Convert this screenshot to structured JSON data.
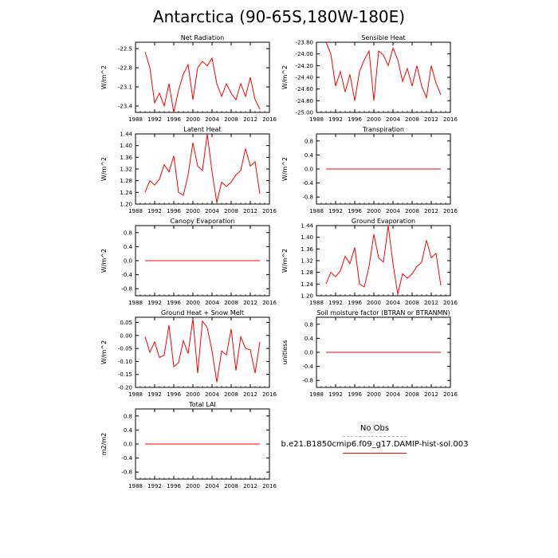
{
  "page_title": "Antarctica (90-65S,180W-180E)",
  "style": {
    "line_color": "#ff0000",
    "obs_color": "#b0b0d8"
  },
  "legend": {
    "entries": [
      {
        "label": "No Obs",
        "style": "dashed",
        "color": "#b0b0d8"
      },
      {
        "label": "b.e21.B1850cmip6.f09_g17.DAMIP-hist-sol.003",
        "style": "solid",
        "color": "#ff0000"
      }
    ]
  },
  "chart_data": [
    {
      "type": "line",
      "title": "Net Radiation",
      "ylabel": "W/m^2",
      "xlim": [
        1988,
        2016
      ],
      "ylim": [
        -23.5,
        -22.4
      ],
      "xticks": [
        "1988",
        "1992",
        "1996",
        "2000",
        "2004",
        "2008",
        "2012",
        "2016"
      ],
      "yticks": [
        "-22.5",
        "-22.8",
        "-23.1",
        "-23.4"
      ],
      "x": [
        1990,
        1991,
        1992,
        1993,
        1994,
        1995,
        1996,
        1997,
        1998,
        1999,
        2000,
        2001,
        2002,
        2003,
        2004,
        2005,
        2006,
        2007,
        2008,
        2009,
        2010,
        2011,
        2012,
        2013,
        2014
      ],
      "series": [
        {
          "values": [
            -22.55,
            -22.8,
            -23.35,
            -23.2,
            -23.4,
            -23.05,
            -23.5,
            -23.15,
            -22.9,
            -22.75,
            -23.3,
            -22.8,
            -22.7,
            -22.77,
            -22.65,
            -23.05,
            -23.25,
            -23.05,
            -23.2,
            -23.3,
            -23.05,
            -23.25,
            -22.95,
            -23.3,
            -23.45
          ]
        }
      ]
    },
    {
      "type": "line",
      "title": "Sensible Heat",
      "ylabel": "W/m^2",
      "xlim": [
        1988,
        2016
      ],
      "ylim": [
        -25.0,
        -23.8
      ],
      "xticks": [
        "1988",
        "1992",
        "1996",
        "2000",
        "2004",
        "2008",
        "2012",
        "2016"
      ],
      "yticks": [
        "-23.80",
        "-24.00",
        "-24.20",
        "-24.40",
        "-24.60",
        "-24.80",
        "-25.00"
      ],
      "x": [
        1990,
        1991,
        1992,
        1993,
        1994,
        1995,
        1996,
        1997,
        1998,
        1999,
        2000,
        2001,
        2002,
        2003,
        2004,
        2005,
        2006,
        2007,
        2008,
        2009,
        2010,
        2011,
        2012,
        2013,
        2014
      ],
      "series": [
        {
          "values": [
            -23.8,
            -24.0,
            -24.55,
            -24.3,
            -24.65,
            -24.35,
            -24.8,
            -24.3,
            -24.1,
            -23.95,
            -24.8,
            -23.95,
            -24.02,
            -24.2,
            -23.9,
            -24.1,
            -24.47,
            -24.25,
            -24.55,
            -24.2,
            -24.55,
            -24.75,
            -24.2,
            -24.5,
            -24.7
          ]
        }
      ]
    },
    {
      "type": "line",
      "title": "Latent Heat",
      "ylabel": "W/m^2",
      "xlim": [
        1988,
        2016
      ],
      "ylim": [
        1.2,
        1.44
      ],
      "xticks": [
        "1988",
        "1992",
        "1996",
        "2000",
        "2004",
        "2008",
        "2012",
        "2016"
      ],
      "yticks": [
        "1.44",
        "1.40",
        "1.36",
        "1.32",
        "1.28",
        "1.24",
        "1.20"
      ],
      "x": [
        1990,
        1991,
        1992,
        1993,
        1994,
        1995,
        1996,
        1997,
        1998,
        1999,
        2000,
        2001,
        2002,
        2003,
        2004,
        2005,
        2006,
        2007,
        2008,
        2009,
        2010,
        2011,
        2012,
        2013,
        2014
      ],
      "series": [
        {
          "values": [
            1.24,
            1.28,
            1.265,
            1.285,
            1.335,
            1.31,
            1.365,
            1.24,
            1.23,
            1.3,
            1.41,
            1.33,
            1.315,
            1.44,
            1.31,
            1.205,
            1.275,
            1.26,
            1.275,
            1.3,
            1.315,
            1.39,
            1.33,
            1.345,
            1.235
          ]
        }
      ]
    },
    {
      "type": "line",
      "title": "Transpiration",
      "ylabel": "W/m^2",
      "xlim": [
        1988,
        2016
      ],
      "ylim": [
        -1.0,
        1.0
      ],
      "xticks": [
        "1988",
        "1992",
        "1996",
        "2000",
        "2004",
        "2008",
        "2012",
        "2016"
      ],
      "yticks": [
        "0.8",
        "0.4",
        "0.0",
        "-0.4",
        "-0.8"
      ],
      "x": [
        1990,
        2014
      ],
      "series": [
        {
          "values": [
            0.0,
            0.0
          ]
        }
      ]
    },
    {
      "type": "line",
      "title": "Canopy Evaporation",
      "ylabel": "W/m^2",
      "xlim": [
        1988,
        2016
      ],
      "ylim": [
        -1.0,
        1.0
      ],
      "xticks": [
        "1988",
        "1992",
        "1996",
        "2000",
        "2004",
        "2008",
        "2012",
        "2016"
      ],
      "yticks": [
        "0.8",
        "0.4",
        "0.0",
        "-0.4",
        "-0.8"
      ],
      "x": [
        1990,
        2014
      ],
      "series": [
        {
          "values": [
            0.0,
            0.0
          ]
        }
      ]
    },
    {
      "type": "line",
      "title": "Ground Evaporation",
      "ylabel": "W/m^2",
      "xlim": [
        1988,
        2016
      ],
      "ylim": [
        1.2,
        1.44
      ],
      "xticks": [
        "1988",
        "1992",
        "1996",
        "2000",
        "2004",
        "2008",
        "2012",
        "2016"
      ],
      "yticks": [
        "1.44",
        "1.40",
        "1.36",
        "1.32",
        "1.28",
        "1.24",
        "1.20"
      ],
      "x": [
        1990,
        1991,
        1992,
        1993,
        1994,
        1995,
        1996,
        1997,
        1998,
        1999,
        2000,
        2001,
        2002,
        2003,
        2004,
        2005,
        2006,
        2007,
        2008,
        2009,
        2010,
        2011,
        2012,
        2013,
        2014
      ],
      "series": [
        {
          "values": [
            1.24,
            1.28,
            1.265,
            1.285,
            1.335,
            1.31,
            1.365,
            1.24,
            1.23,
            1.3,
            1.41,
            1.33,
            1.315,
            1.44,
            1.31,
            1.205,
            1.275,
            1.26,
            1.275,
            1.3,
            1.315,
            1.39,
            1.33,
            1.345,
            1.235
          ]
        }
      ]
    },
    {
      "type": "line",
      "title": "Ground Heat + Snow Melt",
      "ylabel": "W/m^2",
      "xlim": [
        1988,
        2016
      ],
      "ylim": [
        -0.2,
        0.07
      ],
      "xticks": [
        "1988",
        "1992",
        "1996",
        "2000",
        "2004",
        "2008",
        "2012",
        "2016"
      ],
      "yticks": [
        "0.05",
        "0.00",
        "-0.05",
        "-0.10",
        "-0.15",
        "-0.20"
      ],
      "x": [
        1990,
        1991,
        1992,
        1993,
        1994,
        1995,
        1996,
        1997,
        1998,
        1999,
        2000,
        2001,
        2002,
        2003,
        2004,
        2005,
        2006,
        2007,
        2008,
        2009,
        2010,
        2011,
        2012,
        2013,
        2014
      ],
      "series": [
        {
          "values": [
            -0.005,
            -0.065,
            -0.025,
            -0.085,
            -0.075,
            0.04,
            -0.12,
            -0.105,
            -0.02,
            -0.07,
            0.065,
            -0.145,
            0.055,
            0.03,
            -0.06,
            -0.18,
            -0.06,
            -0.075,
            0.025,
            -0.135,
            -0.005,
            -0.05,
            -0.055,
            -0.145,
            -0.025
          ]
        }
      ]
    },
    {
      "type": "line",
      "title": "Soil moisture factor (BTRAN or BTRANMN)",
      "ylabel": "unitless",
      "xlim": [
        1988,
        2016
      ],
      "ylim": [
        -1.0,
        1.0
      ],
      "xticks": [
        "1988",
        "1992",
        "1996",
        "2000",
        "2004",
        "2008",
        "2012",
        "2016"
      ],
      "yticks": [
        "0.8",
        "0.4",
        "0.0",
        "-0.4",
        "-0.8"
      ],
      "x": [
        1990,
        2014
      ],
      "series": [
        {
          "values": [
            0.0,
            0.0
          ]
        }
      ]
    },
    {
      "type": "line",
      "title": "Total LAI",
      "ylabel": "m2/m2",
      "xlim": [
        1988,
        2016
      ],
      "ylim": [
        -1.0,
        1.0
      ],
      "xticks": [
        "1988",
        "1992",
        "1996",
        "2000",
        "2004",
        "2008",
        "2012",
        "2016"
      ],
      "yticks": [
        "0.8",
        "0.4",
        "0.0",
        "-0.4",
        "-0.8"
      ],
      "x": [
        1990,
        2014
      ],
      "series": [
        {
          "values": [
            0.0,
            0.0
          ]
        }
      ]
    }
  ]
}
